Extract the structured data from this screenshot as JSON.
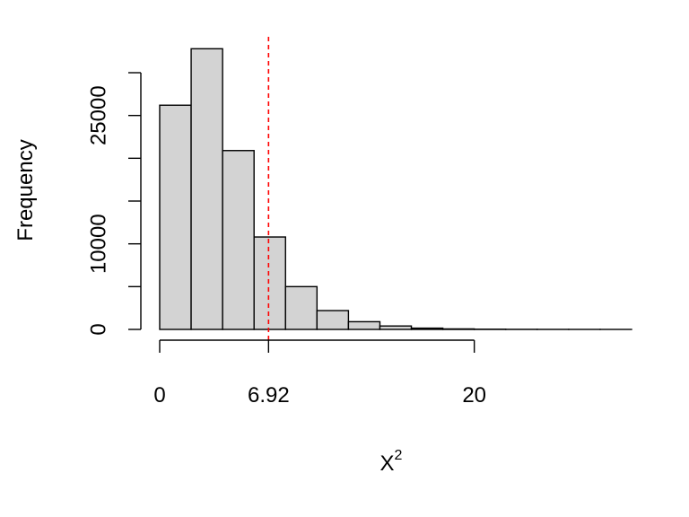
{
  "chart_data": {
    "type": "bar",
    "title": "",
    "xlabel_base": "X",
    "xlabel_sup": "2",
    "ylabel": "Frequency",
    "bin_edges": [
      0,
      2,
      4,
      6,
      8,
      10,
      12,
      14,
      16,
      18,
      20,
      22,
      24,
      26,
      28,
      30
    ],
    "values": [
      26200,
      32800,
      20900,
      10800,
      5000,
      2200,
      900,
      400,
      150,
      60,
      25,
      10,
      5,
      2,
      1
    ],
    "xlim": [
      0,
      30
    ],
    "ylim": [
      0,
      30000
    ],
    "x_ticks": [
      0,
      6.92,
      20
    ],
    "x_tick_labels": [
      "0",
      "6.92",
      "20"
    ],
    "y_ticks": [
      0,
      5000,
      10000,
      15000,
      20000,
      25000,
      30000
    ],
    "y_tick_labels": [
      "0",
      "",
      "10000",
      "",
      "",
      "25000",
      ""
    ],
    "reference_line": {
      "x": 6.92,
      "style": "dashed",
      "color": "#ff0000"
    },
    "bar_fill": "#d3d3d3",
    "bar_stroke": "#000000",
    "grid": false,
    "legend": "none"
  }
}
